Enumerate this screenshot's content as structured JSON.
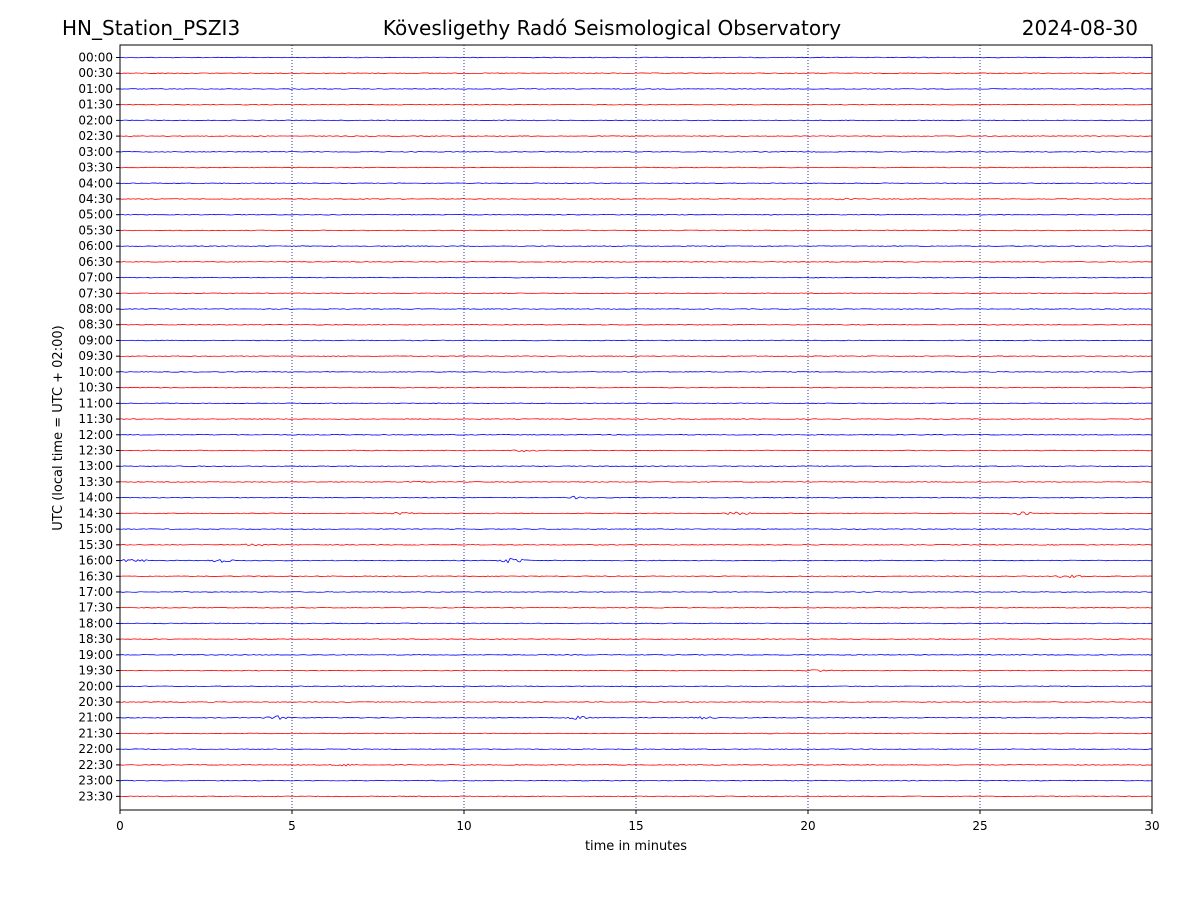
{
  "header": {
    "station": "HN_Station_PSZI3",
    "observatory": "Kövesligethy Radó Seismological Observatory",
    "date": "2024-08-30"
  },
  "chart_data": {
    "type": "line",
    "xlabel": "time in minutes",
    "ylabel": "UTC (local time = UTC + 02:00)",
    "xlim": [
      0,
      30
    ],
    "xticks": [
      0,
      5,
      10,
      15,
      20,
      25,
      30
    ],
    "vertical_gridlines": [
      5,
      10,
      15,
      20,
      25
    ],
    "trace_colors": [
      "#0000ff",
      "#ff0000"
    ],
    "rows": [
      "00:00",
      "00:30",
      "01:00",
      "01:30",
      "02:00",
      "02:30",
      "03:00",
      "03:30",
      "04:00",
      "04:30",
      "05:00",
      "05:30",
      "06:00",
      "06:30",
      "07:00",
      "07:30",
      "08:00",
      "08:30",
      "09:00",
      "09:30",
      "10:00",
      "10:30",
      "11:00",
      "11:30",
      "12:00",
      "12:30",
      "13:00",
      "13:30",
      "14:00",
      "14:30",
      "15:00",
      "15:30",
      "16:00",
      "16:30",
      "17:00",
      "17:30",
      "18:00",
      "18:30",
      "19:00",
      "19:30",
      "20:00",
      "20:30",
      "21:00",
      "21:30",
      "22:00",
      "22:30",
      "23:00",
      "23:30"
    ],
    "events": [
      {
        "row": "04:30",
        "minute": 21.0,
        "amplitude": 1.5
      },
      {
        "row": "12:30",
        "minute": 11.8,
        "amplitude": 1.5
      },
      {
        "row": "13:30",
        "minute": 8.7,
        "amplitude": 1.5
      },
      {
        "row": "14:00",
        "minute": 13.2,
        "amplitude": 1.5
      },
      {
        "row": "14:30",
        "minute": 8.2,
        "amplitude": 1.5
      },
      {
        "row": "14:30",
        "minute": 18.0,
        "amplitude": 2.5
      },
      {
        "row": "14:30",
        "minute": 26.2,
        "amplitude": 2.0
      },
      {
        "row": "15:30",
        "minute": 3.9,
        "amplitude": 1.5
      },
      {
        "row": "16:00",
        "minute": 0.4,
        "amplitude": 2.0
      },
      {
        "row": "16:00",
        "minute": 2.9,
        "amplitude": 2.0
      },
      {
        "row": "16:00",
        "minute": 11.4,
        "amplitude": 3.0
      },
      {
        "row": "16:30",
        "minute": 27.6,
        "amplitude": 2.0
      },
      {
        "row": "19:30",
        "minute": 20.3,
        "amplitude": 1.5
      },
      {
        "row": "21:00",
        "minute": 4.6,
        "amplitude": 2.0
      },
      {
        "row": "21:00",
        "minute": 13.3,
        "amplitude": 1.8
      },
      {
        "row": "21:00",
        "minute": 17.0,
        "amplitude": 1.5
      },
      {
        "row": "22:30",
        "minute": 6.5,
        "amplitude": 1.5
      }
    ]
  }
}
